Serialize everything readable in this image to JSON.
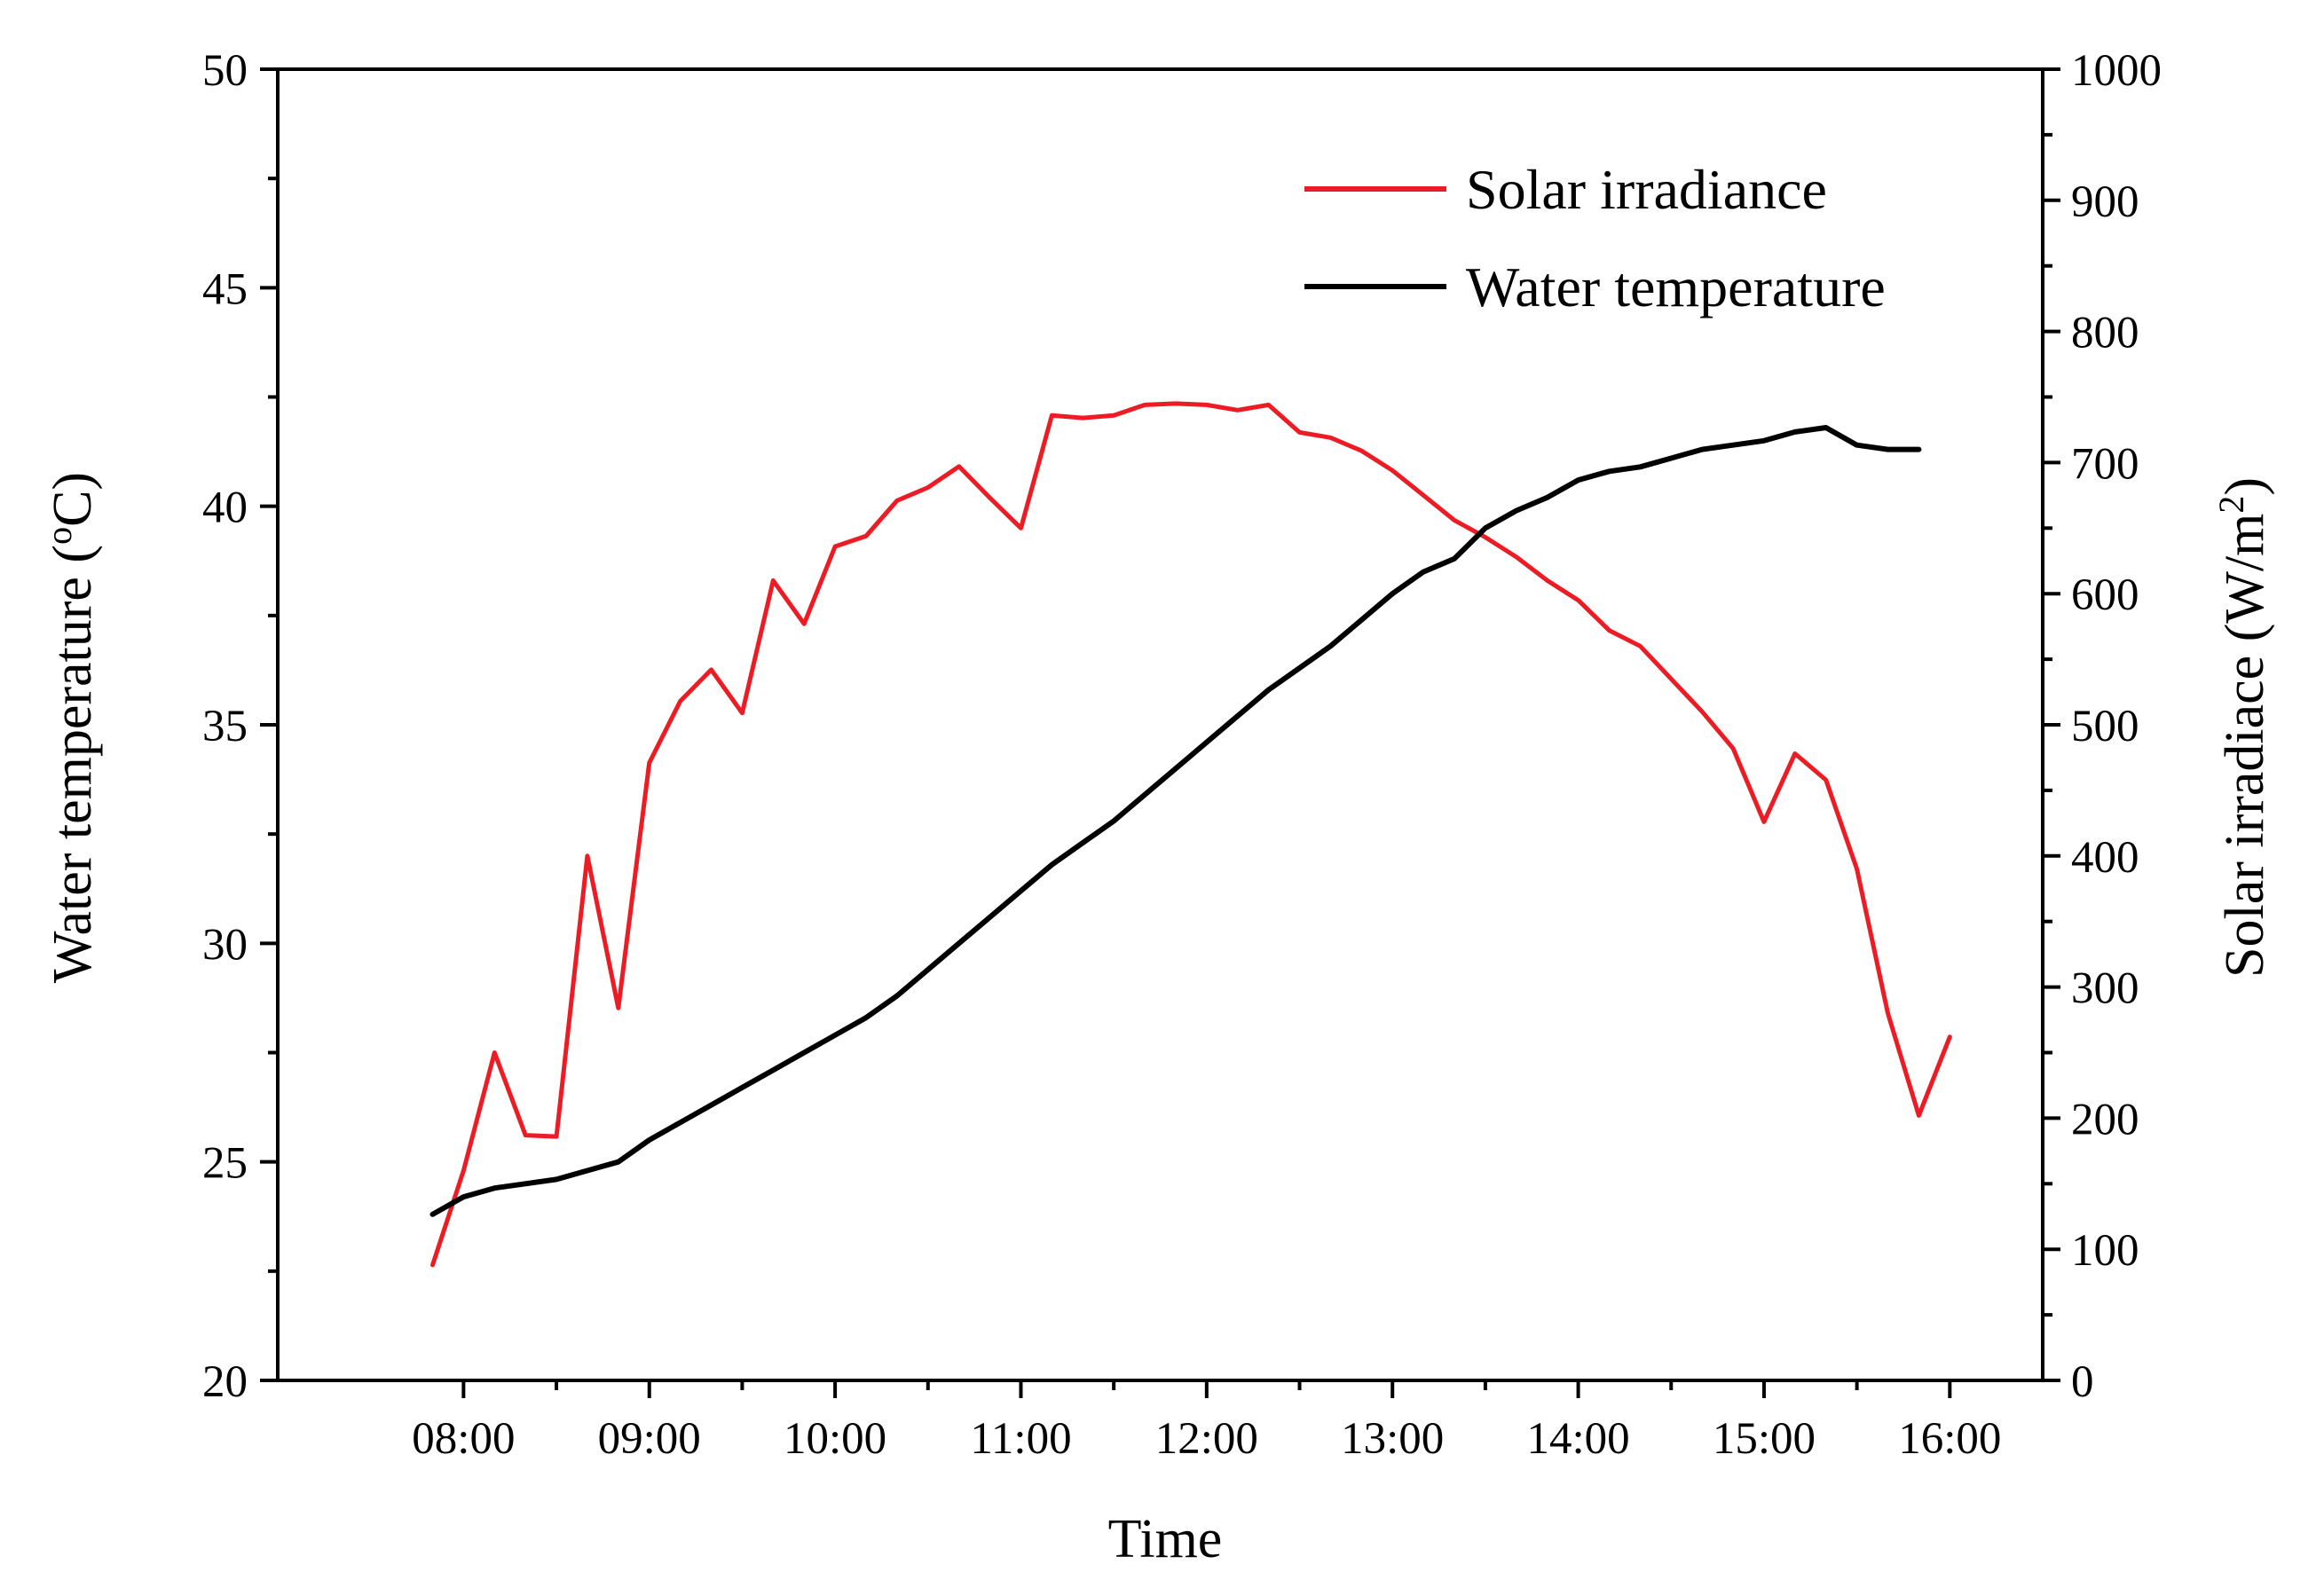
{
  "chart_data": {
    "type": "line",
    "xlabel": "Time",
    "ylabel_left": {
      "prefix": "Water temperature (",
      "sup": "o",
      "suffix": "C)"
    },
    "ylabel_right": {
      "prefix": "Solar irradiace (W/m",
      "sup": "2",
      "suffix": ")"
    },
    "x_range_hours": [
      7.0,
      16.5
    ],
    "x_ticks": [
      8,
      9,
      10,
      11,
      12,
      13,
      14,
      15,
      16
    ],
    "x_tick_labels": [
      "08:00",
      "09:00",
      "10:00",
      "11:00",
      "12:00",
      "13:00",
      "14:00",
      "15:00",
      "16:00"
    ],
    "y_left_range": [
      20,
      50
    ],
    "y_left_ticks": [
      20,
      25,
      30,
      35,
      40,
      45,
      50
    ],
    "y_right_range": [
      0,
      1000
    ],
    "y_right_ticks": [
      0,
      100,
      200,
      300,
      400,
      500,
      600,
      700,
      800,
      900,
      1000
    ],
    "legend_position": "top-right",
    "grid": false,
    "series": [
      {
        "name": "Solar irradiance",
        "axis": "right",
        "color": "#ed1c24",
        "x": [
          "07:50",
          "08:00",
          "08:10",
          "08:20",
          "08:30",
          "08:40",
          "08:50",
          "09:00",
          "09:10",
          "09:20",
          "09:30",
          "09:40",
          "09:50",
          "10:00",
          "10:10",
          "10:20",
          "10:30",
          "10:40",
          "10:50",
          "11:00",
          "11:10",
          "11:20",
          "11:30",
          "11:40",
          "11:50",
          "12:00",
          "12:10",
          "12:20",
          "12:30",
          "12:40",
          "12:50",
          "13:00",
          "13:10",
          "13:20",
          "13:30",
          "13:40",
          "13:50",
          "14:00",
          "14:10",
          "14:20",
          "14:30",
          "14:40",
          "14:50",
          "15:00",
          "15:10",
          "15:20",
          "15:30",
          "15:40",
          "15:50",
          "16:00"
        ],
        "values": [
          88,
          160,
          250,
          187,
          186,
          400,
          284,
          471,
          518,
          542,
          509,
          610,
          577,
          636,
          644,
          671,
          681,
          697,
          673,
          650,
          736,
          734,
          736,
          744,
          745,
          744,
          740,
          744,
          723,
          719,
          709,
          694,
          675,
          656,
          643,
          628,
          610,
          595,
          572,
          560,
          535,
          510,
          482,
          426,
          478,
          458,
          390,
          280,
          202,
          262
        ]
      },
      {
        "name": "Water temperature",
        "axis": "left",
        "color": "#000000",
        "x": [
          "07:50",
          "08:00",
          "08:10",
          "08:20",
          "08:30",
          "08:40",
          "08:50",
          "09:00",
          "09:10",
          "09:20",
          "09:30",
          "09:40",
          "09:50",
          "10:00",
          "10:10",
          "10:20",
          "10:30",
          "10:40",
          "10:50",
          "11:00",
          "11:10",
          "11:20",
          "11:30",
          "11:40",
          "11:50",
          "12:00",
          "12:10",
          "12:20",
          "12:30",
          "12:40",
          "12:50",
          "13:00",
          "13:10",
          "13:20",
          "13:30",
          "13:40",
          "13:50",
          "14:00",
          "14:10",
          "14:20",
          "14:30",
          "14:40",
          "14:50",
          "15:00",
          "15:10",
          "15:20",
          "15:30",
          "15:40",
          "15:50"
        ],
        "values": [
          23.8,
          24.2,
          24.4,
          24.5,
          24.6,
          24.8,
          25.0,
          25.5,
          25.9,
          26.3,
          26.7,
          27.1,
          27.5,
          27.9,
          28.3,
          28.8,
          29.4,
          30.0,
          30.6,
          31.2,
          31.8,
          32.3,
          32.8,
          33.4,
          34.0,
          34.6,
          35.2,
          35.8,
          36.3,
          36.8,
          37.4,
          38.0,
          38.5,
          38.8,
          39.5,
          39.9,
          40.2,
          40.6,
          40.8,
          40.9,
          41.1,
          41.3,
          41.4,
          41.5,
          41.7,
          41.8,
          41.4,
          41.3,
          41.3
        ]
      }
    ]
  }
}
